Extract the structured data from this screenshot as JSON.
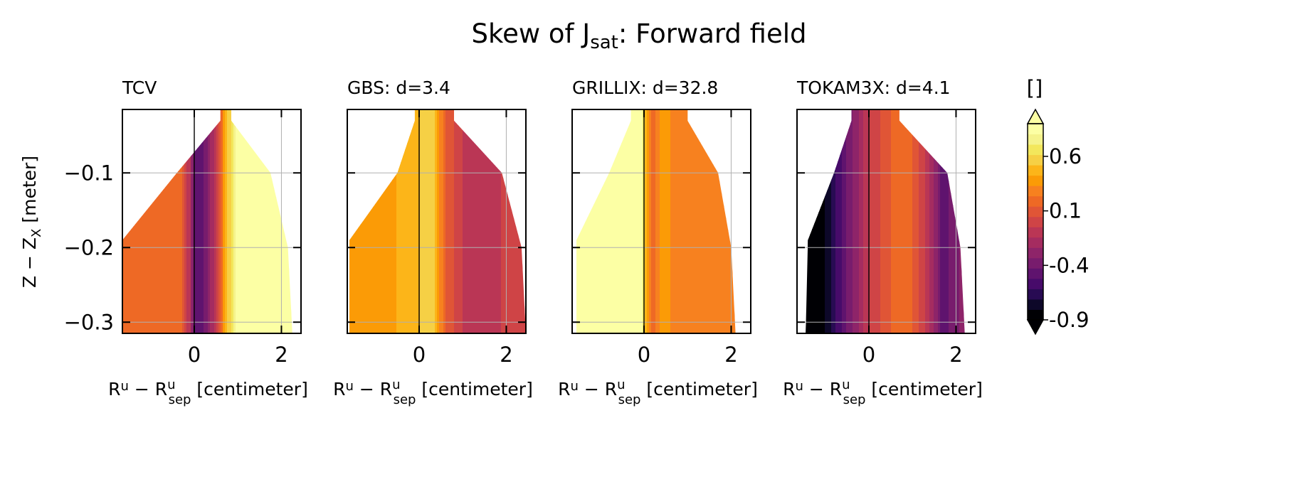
{
  "chart_data": {
    "type": "heatmap",
    "title": "Skew of J",
    "title_sub": "sat",
    "title_tail": ": Forward field",
    "ylabel_main": "Z − Z",
    "ylabel_sub": "X",
    "ylabel_tail": " [meter]",
    "xlabel_main": "R",
    "xlabel_sup": "u",
    "xlabel_mid": " − R",
    "xlabel_sup2": "u",
    "xlabel_sub2": "sep",
    "xlabel_tail": " [centimeter]",
    "xlim": [
      -1.65,
      2.45
    ],
    "ylim": [
      -0.315,
      -0.015
    ],
    "xticks": [
      0,
      2
    ],
    "xtick_labels": [
      "0",
      "2"
    ],
    "yticks": [
      -0.1,
      -0.2,
      -0.3
    ],
    "ytick_labels": [
      "−0.1",
      "−0.2",
      "−0.3"
    ],
    "grid": true,
    "panels": [
      {
        "label": "TCV",
        "left_boundary": [
          [
            -0.03,
            0.6
          ],
          [
            -0.1,
            -0.4
          ],
          [
            -0.19,
            -1.65
          ],
          [
            -0.315,
            -1.65
          ]
        ],
        "right_boundary": [
          [
            -0.03,
            0.85
          ],
          [
            -0.1,
            1.75
          ],
          [
            -0.2,
            2.15
          ],
          [
            -0.315,
            2.25
          ]
        ],
        "profile": [
          [
            -1.65,
            0.2
          ],
          [
            -0.3,
            0.1
          ],
          [
            -0.1,
            -0.2
          ],
          [
            0.0,
            -0.5
          ],
          [
            0.2,
            -0.55
          ],
          [
            0.45,
            -0.2
          ],
          [
            0.7,
            0.35
          ],
          [
            0.9,
            0.75
          ],
          [
            1.2,
            1.05
          ],
          [
            2.3,
            1.1
          ]
        ]
      },
      {
        "label": "GBS: d=3.4",
        "left_boundary": [
          [
            -0.03,
            -0.1
          ],
          [
            -0.1,
            -0.5
          ],
          [
            -0.19,
            -1.6
          ],
          [
            -0.315,
            -1.6
          ]
        ],
        "right_boundary": [
          [
            -0.03,
            0.8
          ],
          [
            -0.1,
            1.9
          ],
          [
            -0.2,
            2.35
          ],
          [
            -0.315,
            2.45
          ]
        ],
        "profile": [
          [
            -1.6,
            0.35
          ],
          [
            -0.5,
            0.4
          ],
          [
            0.0,
            0.5
          ],
          [
            0.3,
            0.6
          ],
          [
            0.6,
            0.1
          ],
          [
            1.0,
            -0.1
          ],
          [
            1.6,
            -0.15
          ],
          [
            2.45,
            0.0
          ]
        ]
      },
      {
        "label": "GRILLIX: d=32.8",
        "left_boundary": [
          [
            -0.03,
            -0.3
          ],
          [
            -0.1,
            -0.8
          ],
          [
            -0.19,
            -1.55
          ],
          [
            -0.315,
            -1.55
          ]
        ],
        "right_boundary": [
          [
            -0.03,
            1.0
          ],
          [
            -0.1,
            1.7
          ],
          [
            -0.2,
            2.0
          ],
          [
            -0.315,
            2.1
          ]
        ],
        "profile": [
          [
            -1.55,
            1.1
          ],
          [
            -0.1,
            1.1
          ],
          [
            0.0,
            0.6
          ],
          [
            0.2,
            0.1
          ],
          [
            0.45,
            0.4
          ],
          [
            0.8,
            0.2
          ],
          [
            1.5,
            0.3
          ],
          [
            2.1,
            0.2
          ]
        ]
      },
      {
        "label": "TOKAM3X: d=4.1",
        "left_boundary": [
          [
            -0.03,
            -0.4
          ],
          [
            -0.1,
            -0.8
          ],
          [
            -0.19,
            -1.4
          ],
          [
            -0.315,
            -1.45
          ]
        ],
        "right_boundary": [
          [
            -0.03,
            0.7
          ],
          [
            -0.1,
            1.8
          ],
          [
            -0.2,
            2.1
          ],
          [
            -0.315,
            2.2
          ]
        ],
        "profile": [
          [
            -1.45,
            -1.1
          ],
          [
            -1.0,
            -0.9
          ],
          [
            -0.5,
            -0.5
          ],
          [
            0.0,
            -0.1
          ],
          [
            0.5,
            0.1
          ],
          [
            1.0,
            0.1
          ],
          [
            1.4,
            -0.2
          ],
          [
            1.7,
            -0.55
          ],
          [
            2.2,
            -0.35
          ]
        ]
      }
    ],
    "colorbar": {
      "label": "[]",
      "ticks": [
        0.6,
        0.1,
        -0.4,
        -0.9
      ],
      "tick_labels": [
        "0.6",
        "0.1",
        "-0.4",
        "-0.9"
      ],
      "levels": [
        -0.9,
        -0.8,
        -0.7,
        -0.6,
        -0.5,
        -0.4,
        -0.3,
        -0.2,
        -0.1,
        0.0,
        0.1,
        0.2,
        0.3,
        0.4,
        0.5,
        0.6,
        0.7,
        0.8,
        0.9
      ],
      "extend": "both",
      "colormap": "inferno",
      "colors": [
        "#000004",
        "#0d0829",
        "#280b53",
        "#470b6a",
        "#5f136e",
        "#781c6d",
        "#8e2469",
        "#a52c60",
        "#ba3655",
        "#cf4446",
        "#e05536",
        "#ee6925",
        "#f7811f",
        "#fb9b06",
        "#fcb519",
        "#f6d045",
        "#f3e75c",
        "#f5f38c",
        "#fcffa4"
      ]
    }
  }
}
